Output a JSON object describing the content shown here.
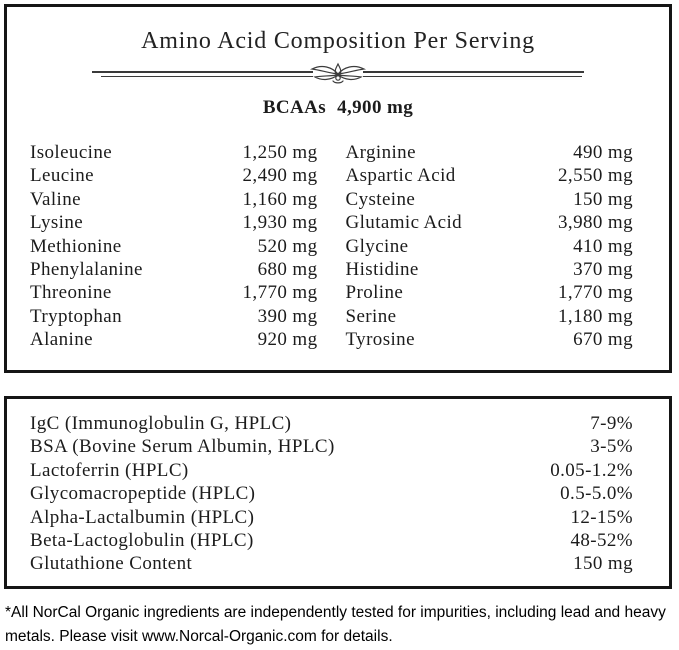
{
  "amino_panel": {
    "title": "Amino Acid Composition Per Serving",
    "bcaa_label": "BCAAs",
    "bcaa_value": "4,900 mg",
    "left_column": [
      {
        "name": "Isoleucine",
        "amount": "1,250 mg"
      },
      {
        "name": "Leucine",
        "amount": "2,490 mg"
      },
      {
        "name": "Valine",
        "amount": "1,160 mg"
      },
      {
        "name": "Lysine",
        "amount": "1,930 mg"
      },
      {
        "name": "Methionine",
        "amount": "520 mg"
      },
      {
        "name": "Phenylalanine",
        "amount": "680 mg"
      },
      {
        "name": "Threonine",
        "amount": "1,770 mg"
      },
      {
        "name": "Tryptophan",
        "amount": "390 mg"
      },
      {
        "name": "Alanine",
        "amount": "920 mg"
      }
    ],
    "right_column": [
      {
        "name": "Arginine",
        "amount": "490 mg"
      },
      {
        "name": "Aspartic Acid",
        "amount": "2,550 mg"
      },
      {
        "name": "Cysteine",
        "amount": "150 mg"
      },
      {
        "name": "Glutamic Acid",
        "amount": "3,980 mg"
      },
      {
        "name": "Glycine",
        "amount": "410 mg"
      },
      {
        "name": "Histidine",
        "amount": "370 mg"
      },
      {
        "name": "Proline",
        "amount": "1,770 mg"
      },
      {
        "name": "Serine",
        "amount": "1,180 mg"
      },
      {
        "name": "Tyrosine",
        "amount": "670 mg"
      }
    ]
  },
  "fractions_panel": {
    "rows": [
      {
        "name": "IgC (Immunoglobulin G, HPLC)",
        "amount": "7-9%"
      },
      {
        "name": "BSA (Bovine Serum Albumin, HPLC)",
        "amount": "3-5%"
      },
      {
        "name": "Lactoferrin (HPLC)",
        "amount": "0.05-1.2%"
      },
      {
        "name": "Glycomacropeptide (HPLC)",
        "amount": "0.5-5.0%"
      },
      {
        "name": "Alpha-Lactalbumin (HPLC)",
        "amount": "12-15%"
      },
      {
        "name": "Beta-Lactoglobulin (HPLC)",
        "amount": "48-52%"
      },
      {
        "name": "Glutathione Content",
        "amount": "150 mg"
      }
    ]
  },
  "footnote": "*All NorCal Organic ingredients are independently tested for impurities, including lead and heavy metals. Please visit www.Norcal-Organic.com for details.",
  "colors": {
    "border": "#151515",
    "text": "#1c1c1c",
    "divider_line": "#3a3a3a"
  }
}
